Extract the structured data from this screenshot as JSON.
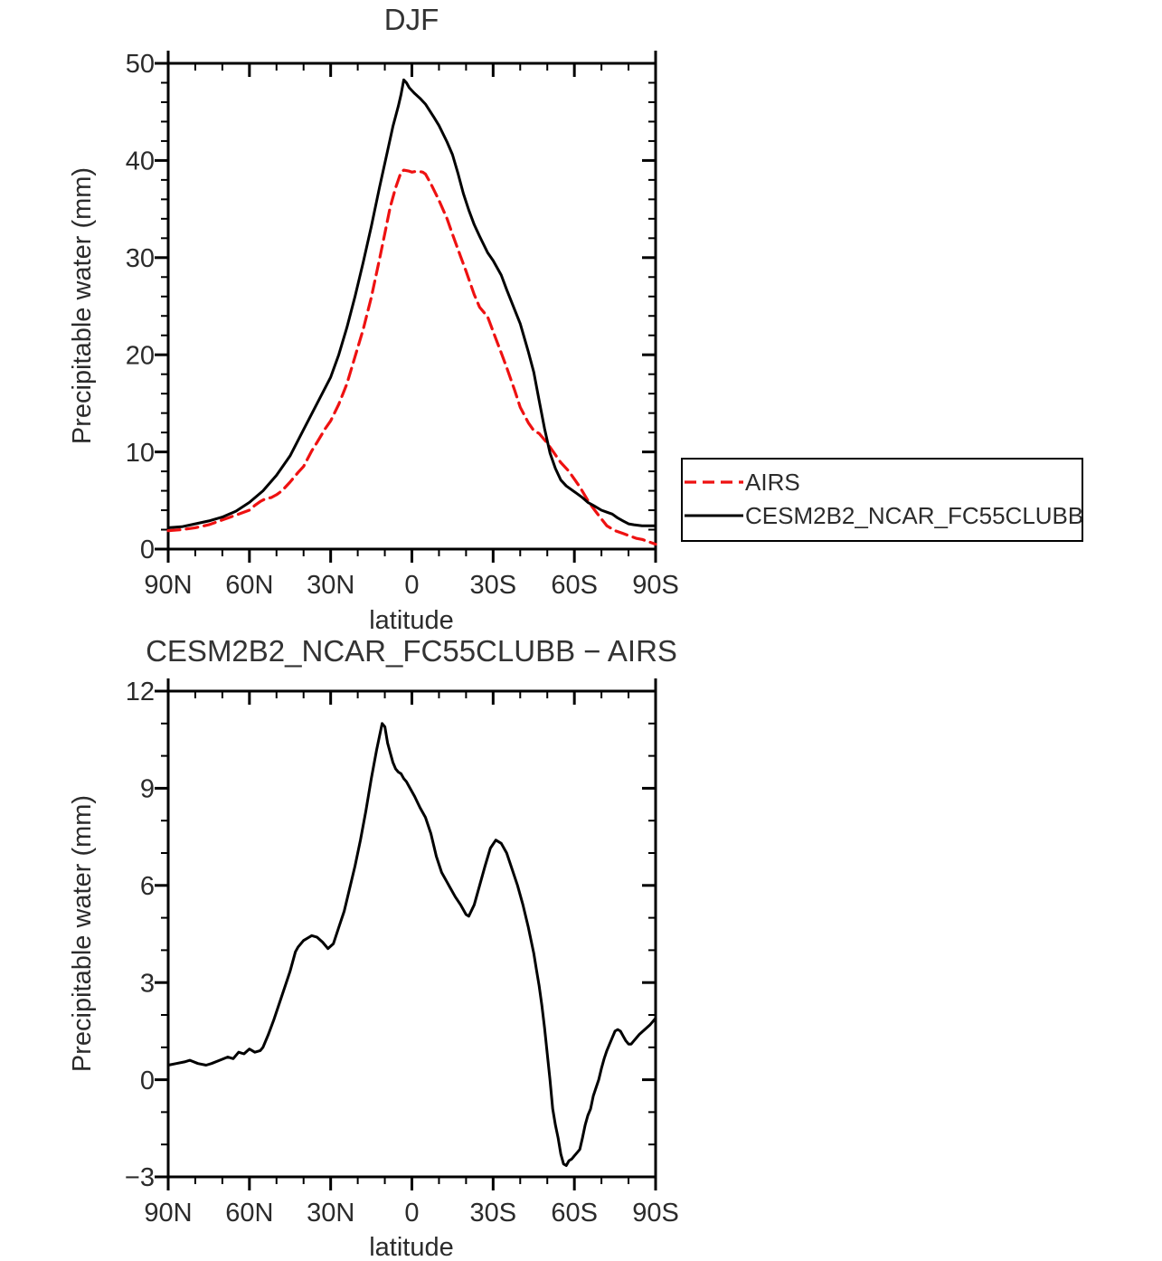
{
  "figure": {
    "background": "#ffffff"
  },
  "colors": {
    "airs": "#ee1111",
    "model": "#000000",
    "text": "#2b2b2b"
  },
  "chart_data": [
    {
      "type": "line",
      "title": "DJF",
      "xlabel": "latitude",
      "ylabel": "Precipitable water (mm)",
      "xlim": [
        90,
        -90
      ],
      "ylim": [
        0,
        50
      ],
      "x_major": 30,
      "x_minor": 10,
      "y_major": 10,
      "y_minor": 2,
      "grid": false,
      "legend_position": "outside-right",
      "x_tick_labels": [
        "90N",
        "60N",
        "30N",
        "0",
        "30S",
        "60S",
        "90S"
      ],
      "y_tick_labels": [
        "50",
        "40",
        "30",
        "20",
        "10",
        "0"
      ],
      "series": [
        {
          "name": "AIRS",
          "color": "#ee1111",
          "style": "dashed",
          "points": [
            [
              90,
              1.9
            ],
            [
              85,
              2.0
            ],
            [
              80,
              2.2
            ],
            [
              75,
              2.5
            ],
            [
              70,
              3.0
            ],
            [
              65,
              3.5
            ],
            [
              60,
              4.0
            ],
            [
              58,
              4.5
            ],
            [
              56,
              4.9
            ],
            [
              54,
              5.2
            ],
            [
              52,
              5.3
            ],
            [
              50,
              5.6
            ],
            [
              48,
              6.0
            ],
            [
              45,
              6.9
            ],
            [
              42,
              7.9
            ],
            [
              40,
              8.5
            ],
            [
              37,
              10.1
            ],
            [
              35,
              11.0
            ],
            [
              32,
              12.4
            ],
            [
              30,
              13.2
            ],
            [
              27,
              14.9
            ],
            [
              24,
              17.0
            ],
            [
              21,
              19.8
            ],
            [
              18,
              22.6
            ],
            [
              15,
              25.9
            ],
            [
              12,
              29.8
            ],
            [
              10,
              32.5
            ],
            [
              8,
              35.2
            ],
            [
              6,
              37.2
            ],
            [
              5,
              38.0
            ],
            [
              4,
              38.8
            ],
            [
              3,
              39.0
            ],
            [
              1,
              38.9
            ],
            [
              0,
              38.8
            ],
            [
              -2,
              38.9
            ],
            [
              -4,
              38.8
            ],
            [
              -5,
              38.6
            ],
            [
              -7,
              37.6
            ],
            [
              -10,
              35.9
            ],
            [
              -13,
              34.0
            ],
            [
              -15,
              32.4
            ],
            [
              -18,
              30.1
            ],
            [
              -20,
              28.6
            ],
            [
              -23,
              26.2
            ],
            [
              -25,
              24.9
            ],
            [
              -28,
              23.9
            ],
            [
              -30,
              22.4
            ],
            [
              -33,
              20.2
            ],
            [
              -35,
              18.7
            ],
            [
              -38,
              16.3
            ],
            [
              -40,
              14.6
            ],
            [
              -43,
              13.0
            ],
            [
              -45,
              12.2
            ],
            [
              -47,
              11.9
            ],
            [
              -50,
              10.9
            ],
            [
              -53,
              9.7
            ],
            [
              -55,
              8.9
            ],
            [
              -58,
              8.0
            ],
            [
              -60,
              7.2
            ],
            [
              -62,
              6.4
            ],
            [
              -65,
              5.0
            ],
            [
              -67,
              4.2
            ],
            [
              -70,
              3.1
            ],
            [
              -72,
              2.4
            ],
            [
              -75,
              1.9
            ],
            [
              -78,
              1.6
            ],
            [
              -80,
              1.4
            ],
            [
              -83,
              1.1
            ],
            [
              -85,
              1.0
            ],
            [
              -88,
              0.7
            ],
            [
              -90,
              0.5
            ]
          ]
        },
        {
          "name": "CESM2B2_NCAR_FC55CLUBB",
          "color": "#000000",
          "style": "solid",
          "points": [
            [
              90,
              2.2
            ],
            [
              85,
              2.3
            ],
            [
              80,
              2.6
            ],
            [
              75,
              2.9
            ],
            [
              70,
              3.3
            ],
            [
              65,
              3.9
            ],
            [
              60,
              4.8
            ],
            [
              55,
              6.0
            ],
            [
              50,
              7.6
            ],
            [
              45,
              9.6
            ],
            [
              40,
              12.3
            ],
            [
              35,
              15.0
            ],
            [
              30,
              17.7
            ],
            [
              27,
              20.0
            ],
            [
              24,
              22.8
            ],
            [
              21,
              26.0
            ],
            [
              18,
              29.5
            ],
            [
              15,
              33.2
            ],
            [
              12,
              37.2
            ],
            [
              9,
              41.0
            ],
            [
              7,
              43.5
            ],
            [
              5,
              45.6
            ],
            [
              4,
              46.8
            ],
            [
              3,
              48.3
            ],
            [
              2,
              48.0
            ],
            [
              1,
              47.5
            ],
            [
              0,
              47.2
            ],
            [
              -1,
              46.9
            ],
            [
              -3,
              46.4
            ],
            [
              -5,
              45.8
            ],
            [
              -8,
              44.5
            ],
            [
              -10,
              43.6
            ],
            [
              -13,
              41.9
            ],
            [
              -15,
              40.6
            ],
            [
              -17,
              38.7
            ],
            [
              -19,
              36.6
            ],
            [
              -21,
              34.9
            ],
            [
              -23,
              33.4
            ],
            [
              -25,
              32.2
            ],
            [
              -28,
              30.5
            ],
            [
              -30,
              29.7
            ],
            [
              -33,
              28.2
            ],
            [
              -35,
              26.7
            ],
            [
              -38,
              24.6
            ],
            [
              -40,
              23.2
            ],
            [
              -43,
              20.3
            ],
            [
              -45,
              18.2
            ],
            [
              -47,
              15.3
            ],
            [
              -49,
              12.4
            ],
            [
              -51,
              9.9
            ],
            [
              -53,
              8.3
            ],
            [
              -55,
              7.1
            ],
            [
              -57,
              6.5
            ],
            [
              -60,
              5.9
            ],
            [
              -63,
              5.3
            ],
            [
              -65,
              4.8
            ],
            [
              -67,
              4.5
            ],
            [
              -70,
              4.0
            ],
            [
              -72,
              3.8
            ],
            [
              -74,
              3.6
            ],
            [
              -76,
              3.2
            ],
            [
              -78,
              2.9
            ],
            [
              -80,
              2.6
            ],
            [
              -82,
              2.5
            ],
            [
              -85,
              2.4
            ],
            [
              -90,
              2.4
            ]
          ]
        }
      ]
    },
    {
      "type": "line",
      "title": "CESM2B2_NCAR_FC55CLUBB − AIRS",
      "xlabel": "latitude",
      "ylabel": "Precipitable water (mm)",
      "xlim": [
        90,
        -90
      ],
      "ylim": [
        -3,
        12
      ],
      "x_major": 30,
      "x_minor": 10,
      "y_major": 3,
      "y_minor": 1,
      "grid": false,
      "x_tick_labels": [
        "90N",
        "60N",
        "30N",
        "0",
        "30S",
        "60S",
        "90S"
      ],
      "y_tick_labels": [
        "12",
        "9",
        "6",
        "3",
        "0",
        "−3"
      ],
      "series": [
        {
          "name": "CESM2B2_NCAR_FC55CLUBB − AIRS",
          "color": "#000000",
          "style": "solid",
          "points": [
            [
              90,
              0.45
            ],
            [
              87,
              0.5
            ],
            [
              84,
              0.55
            ],
            [
              82,
              0.6
            ],
            [
              79,
              0.5
            ],
            [
              76,
              0.45
            ],
            [
              74,
              0.5
            ],
            [
              71,
              0.6
            ],
            [
              68,
              0.7
            ],
            [
              66,
              0.65
            ],
            [
              64,
              0.85
            ],
            [
              62,
              0.8
            ],
            [
              60,
              0.95
            ],
            [
              58,
              0.85
            ],
            [
              56,
              0.9
            ],
            [
              55,
              1.0
            ],
            [
              53,
              1.4
            ],
            [
              51,
              1.85
            ],
            [
              49,
              2.35
            ],
            [
              47,
              2.85
            ],
            [
              45,
              3.35
            ],
            [
              43,
              3.95
            ],
            [
              42,
              4.1
            ],
            [
              40,
              4.3
            ],
            [
              38,
              4.4
            ],
            [
              37,
              4.45
            ],
            [
              35,
              4.4
            ],
            [
              33,
              4.25
            ],
            [
              31,
              4.05
            ],
            [
              29,
              4.2
            ],
            [
              27,
              4.7
            ],
            [
              25,
              5.2
            ],
            [
              23,
              5.9
            ],
            [
              21,
              6.6
            ],
            [
              19,
              7.4
            ],
            [
              17,
              8.3
            ],
            [
              15,
              9.3
            ],
            [
              13,
              10.2
            ],
            [
              12,
              10.6
            ],
            [
              11,
              11.0
            ],
            [
              10,
              10.9
            ],
            [
              9,
              10.4
            ],
            [
              8,
              10.1
            ],
            [
              7,
              9.8
            ],
            [
              6,
              9.6
            ],
            [
              5,
              9.5
            ],
            [
              4,
              9.45
            ],
            [
              3,
              9.3
            ],
            [
              2,
              9.2
            ],
            [
              1,
              9.05
            ],
            [
              0,
              8.9
            ],
            [
              -1,
              8.75
            ],
            [
              -3,
              8.4
            ],
            [
              -5,
              8.1
            ],
            [
              -7,
              7.6
            ],
            [
              -9,
              6.9
            ],
            [
              -11,
              6.4
            ],
            [
              -13,
              6.1
            ],
            [
              -14,
              5.95
            ],
            [
              -16,
              5.65
            ],
            [
              -18,
              5.4
            ],
            [
              -20,
              5.1
            ],
            [
              -21,
              5.05
            ],
            [
              -23,
              5.4
            ],
            [
              -25,
              6.0
            ],
            [
              -27,
              6.6
            ],
            [
              -29,
              7.15
            ],
            [
              -31,
              7.4
            ],
            [
              -33,
              7.3
            ],
            [
              -35,
              7.0
            ],
            [
              -37,
              6.5
            ],
            [
              -39,
              6.0
            ],
            [
              -41,
              5.4
            ],
            [
              -43,
              4.7
            ],
            [
              -45,
              3.9
            ],
            [
              -46,
              3.4
            ],
            [
              -47,
              2.9
            ],
            [
              -48,
              2.3
            ],
            [
              -49,
              1.6
            ],
            [
              -50,
              0.8
            ],
            [
              -51,
              0.0
            ],
            [
              -52,
              -0.9
            ],
            [
              -53,
              -1.4
            ],
            [
              -54,
              -1.8
            ],
            [
              -55,
              -2.3
            ],
            [
              -56,
              -2.6
            ],
            [
              -57,
              -2.65
            ],
            [
              -58,
              -2.5
            ],
            [
              -59,
              -2.45
            ],
            [
              -60,
              -2.35
            ],
            [
              -61,
              -2.25
            ],
            [
              -62,
              -2.15
            ],
            [
              -63,
              -1.8
            ],
            [
              -64,
              -1.4
            ],
            [
              -65,
              -1.1
            ],
            [
              -66,
              -0.9
            ],
            [
              -67,
              -0.5
            ],
            [
              -68,
              -0.25
            ],
            [
              -69,
              0.0
            ],
            [
              -70,
              0.35
            ],
            [
              -71,
              0.65
            ],
            [
              -72,
              0.9
            ],
            [
              -73,
              1.1
            ],
            [
              -74,
              1.3
            ],
            [
              -75,
              1.5
            ],
            [
              -76,
              1.55
            ],
            [
              -77,
              1.5
            ],
            [
              -78,
              1.35
            ],
            [
              -79,
              1.2
            ],
            [
              -80,
              1.1
            ],
            [
              -81,
              1.1
            ],
            [
              -82,
              1.2
            ],
            [
              -84,
              1.4
            ],
            [
              -86,
              1.55
            ],
            [
              -88,
              1.7
            ],
            [
              -89,
              1.8
            ],
            [
              -90,
              1.9
            ]
          ]
        }
      ]
    }
  ]
}
